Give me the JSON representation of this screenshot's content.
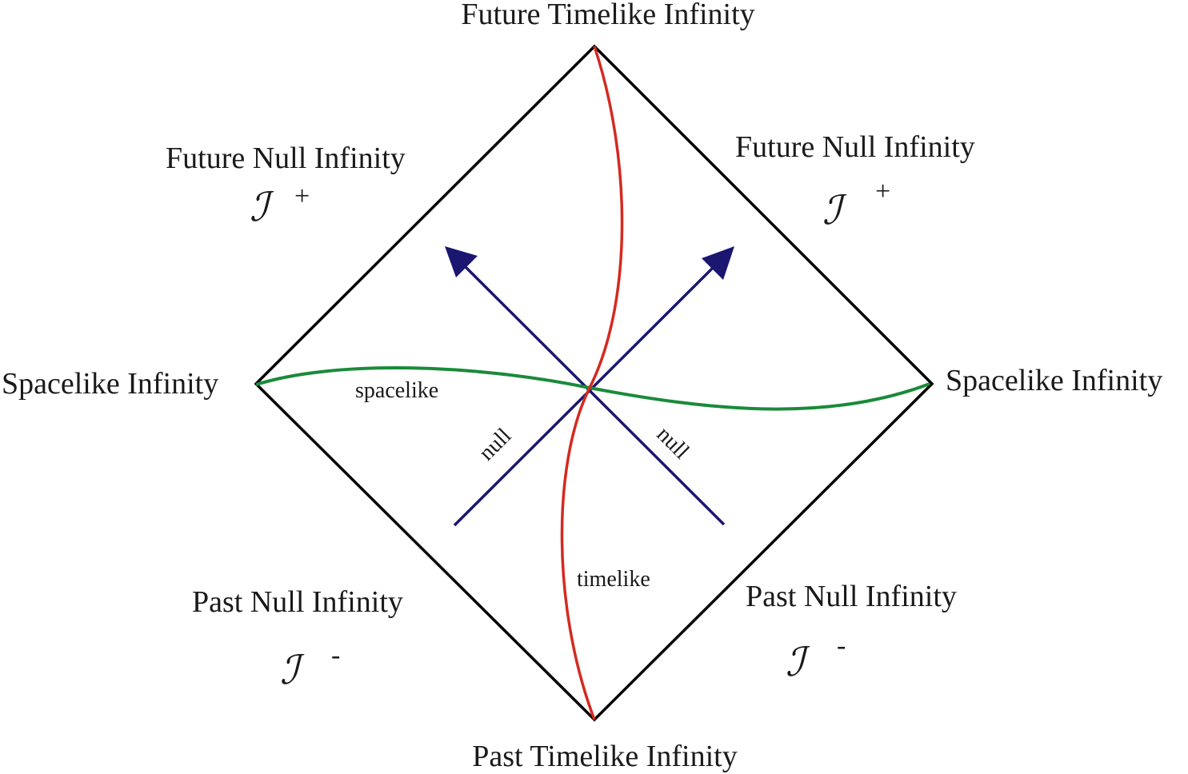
{
  "colors": {
    "boundary": "#000000",
    "timelike_curve": "#d42a20",
    "spacelike_curve": "#1a8a3a",
    "null_lines": "#1b1670",
    "text": "#1a1a1a"
  },
  "labels": {
    "future_timelike_infinity": "Future Timelike Infinity",
    "past_timelike_infinity": "Past Timelike Infinity",
    "spacelike_infinity_left": "Spacelike Infinity",
    "spacelike_infinity_right": "Spacelike Infinity",
    "future_null_infinity_left": "Future Null Infinity",
    "future_null_infinity_right": "Future Null Infinity",
    "past_null_infinity_left": "Past Null Infinity",
    "past_null_infinity_right": "Past Null Infinity",
    "scri_symbol": "ℐ",
    "scri_plus_sign": "+",
    "scri_minus_sign": "-",
    "spacelike": "spacelike",
    "timelike": "timelike",
    "null_left": "null",
    "null_right": "null"
  },
  "icons": {
    "null_arrow_left": "arrow-up-left-icon",
    "null_arrow_right": "arrow-up-right-icon"
  }
}
